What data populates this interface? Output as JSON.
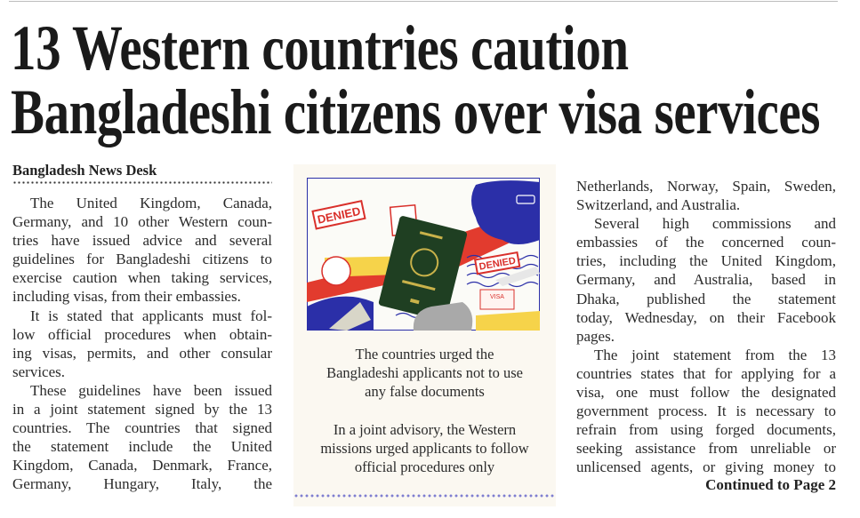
{
  "headline": {
    "line1": "13 Western countries caution",
    "line2": "Bangladeshi citizens over visa services"
  },
  "byline": "Bangladesh News Desk",
  "left_column": [
    {
      "text": "The United Kingdom, Canada,",
      "indent": true
    },
    {
      "text": "Germany, and 10 other Western coun-"
    },
    {
      "text": "tries have issued advice and several"
    },
    {
      "text": "guidelines for Bangladeshi citizens to"
    },
    {
      "text": "exercise caution when taking services,"
    },
    {
      "text": "including visas, from their embassies.",
      "last": true
    },
    {
      "text": "It is stated that applicants must fol-",
      "indent": true
    },
    {
      "text": "low official procedures when obtain-"
    },
    {
      "text": "ing visas, permits, and other consular"
    },
    {
      "text": "services.",
      "last": true
    },
    {
      "text": "These guidelines have been issued",
      "indent": true
    },
    {
      "text": "in a joint statement signed by the 13"
    },
    {
      "text": "countries. The countries that signed"
    },
    {
      "text": "the statement include the United"
    },
    {
      "text": "Kingdom, Canada, Denmark, France,"
    },
    {
      "text": "Germany, Hungary, Italy, the"
    }
  ],
  "right_column": [
    {
      "text": "Netherlands, Norway, Spain, Sweden,"
    },
    {
      "text": "Switzerland, and Australia.",
      "last": true
    },
    {
      "text": "Several high commissions and",
      "indent": true
    },
    {
      "text": "embassies of the concerned coun-"
    },
    {
      "text": "tries, including the United Kingdom,"
    },
    {
      "text": "Germany, and Australia, based in"
    },
    {
      "text": "Dhaka, published the statement"
    },
    {
      "text": "today, Wednesday, on their Facebook"
    },
    {
      "text": "pages.",
      "last": true
    },
    {
      "text": "The joint statement from the 13",
      "indent": true
    },
    {
      "text": "countries states that for applying for a"
    },
    {
      "text": "visa, one must follow the designated"
    },
    {
      "text": "government process. It is necessary to"
    },
    {
      "text": "refrain from using forged documents,"
    },
    {
      "text": "seeking assistance from unreliable or"
    },
    {
      "text": "unlicensed agents, or giving money to"
    }
  ],
  "continued": "Continued to Page 2",
  "image": {
    "stamp_labels": [
      "DENIED",
      "DENIED",
      "VISA"
    ],
    "colors": {
      "blue": "#2b2fa8",
      "red": "#e23b2e",
      "yellow": "#f6d34a",
      "green": "#1f3f22"
    }
  },
  "captions": {
    "caption1": [
      "The countries urged the",
      "Bangladeshi applicants not to use",
      "any false documents"
    ],
    "caption2": [
      "In a joint advisory, the Western",
      "missions urged applicants to follow",
      "official procedures only"
    ]
  }
}
